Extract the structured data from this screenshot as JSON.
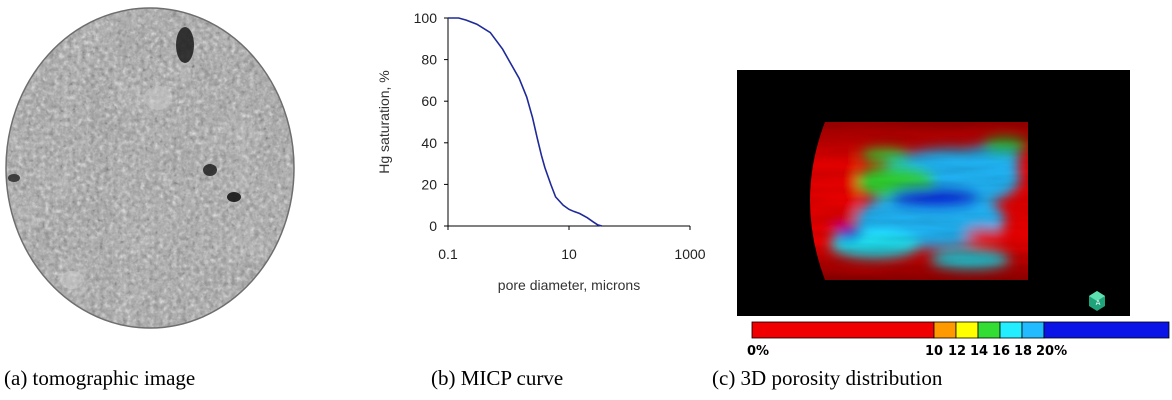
{
  "captions": {
    "a": "(a) tomographic image",
    "b": "(b) MICP curve",
    "c": "(c) 3D porosity distribution"
  },
  "colors": {
    "curve": "#1f2a9a",
    "red": "#f00000",
    "orange": "#ff9900",
    "yellow": "#ffff00",
    "green": "#33dd33",
    "cyan": "#22eeff",
    "lightblue": "#22bbff",
    "blue": "#0a14e6"
  },
  "chart_data": {
    "type": "line",
    "title": "",
    "xlabel": "pore diameter, microns",
    "ylabel": "Hg saturation, %",
    "xscale": "log",
    "xlim": [
      0.1,
      1000
    ],
    "ylim": [
      0,
      100
    ],
    "xticks": [
      "0.1",
      "10",
      "1000"
    ],
    "yticks": [
      "0",
      "20",
      "40",
      "60",
      "80",
      "100"
    ],
    "grid": false,
    "series": [
      {
        "x": [
          0.1,
          0.15,
          0.2,
          0.3,
          0.5,
          0.8,
          1.0,
          1.5,
          2.0,
          2.5,
          3.0,
          3.5,
          4.0,
          5.0,
          6.0,
          8.0,
          10.0,
          12.0,
          15.0,
          20.0,
          25.0,
          30.0,
          35.0
        ],
        "y": [
          100,
          100,
          99,
          97,
          93,
          85,
          80,
          71,
          62,
          52,
          42,
          34,
          28,
          20,
          14,
          10,
          8,
          7,
          6,
          4,
          2,
          0.5,
          0
        ]
      }
    ]
  },
  "colorbar": {
    "labels": [
      "0%",
      "10",
      "12",
      "14",
      "16",
      "18",
      "20%"
    ]
  }
}
